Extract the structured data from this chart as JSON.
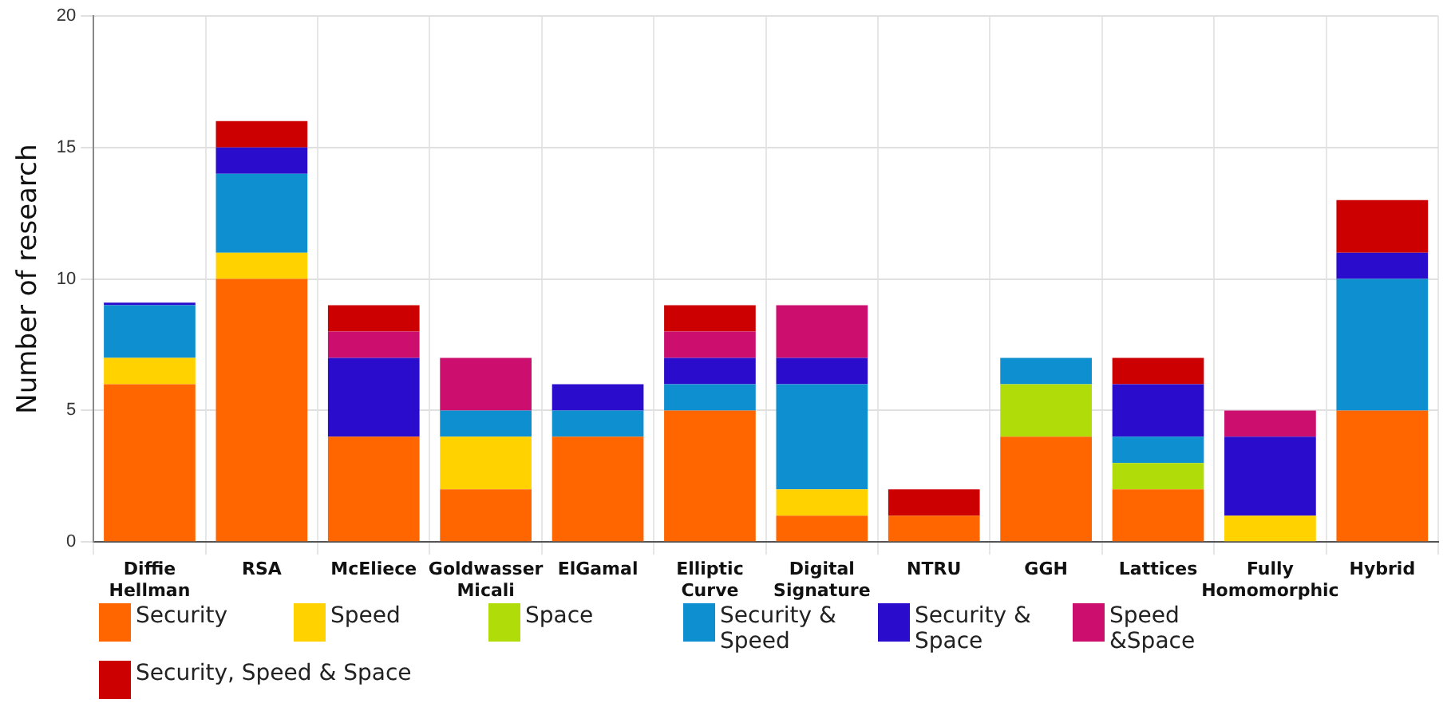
{
  "chart_data": {
    "type": "bar",
    "stacked": true,
    "ylabel": "Number of research",
    "categories": [
      "Diffie Hellman",
      "RSA",
      "McEliece",
      "Goldwasser Micali",
      "ElGamal",
      "Elliptic Curve",
      "Digital Signature",
      "NTRU",
      "GGH",
      "Lattices",
      "Fully Homomorphic",
      "Hybrid"
    ],
    "series": [
      {
        "name": "Security",
        "color": "#ff6600",
        "values": [
          6,
          10,
          4,
          2,
          4,
          5,
          1,
          1,
          4,
          2,
          0,
          5
        ]
      },
      {
        "name": "Speed",
        "color": "#ffd200",
        "values": [
          1,
          1,
          0,
          2,
          0,
          0,
          1,
          0,
          0,
          0,
          1,
          0
        ]
      },
      {
        "name": "Space",
        "color": "#b0dc0a",
        "values": [
          0,
          0,
          0,
          0,
          0,
          0,
          0,
          0,
          2,
          1,
          0,
          0
        ]
      },
      {
        "name": "Security & Speed",
        "color": "#0e8fd0",
        "values": [
          2,
          3,
          0,
          1,
          1,
          1,
          4,
          0,
          1,
          1,
          0,
          5
        ]
      },
      {
        "name": "Security & Space",
        "color": "#2a0ccc",
        "values": [
          0.1,
          1,
          3,
          0,
          1,
          1,
          1,
          0,
          0,
          2,
          3,
          1
        ]
      },
      {
        "name": "Speed &Space",
        "color": "#cc0e6e",
        "values": [
          0,
          0,
          1,
          2,
          0,
          1,
          2,
          0,
          0,
          0,
          1,
          0
        ]
      },
      {
        "name": "Security, Speed & Space",
        "color": "#cc0000",
        "values": [
          0,
          1,
          1,
          0,
          0,
          1,
          0,
          1,
          0,
          1,
          0,
          2
        ]
      }
    ],
    "ylim": [
      0,
      20
    ],
    "yticks": [
      0,
      5,
      10,
      15,
      20
    ],
    "grid": true,
    "legend": "bottom"
  }
}
